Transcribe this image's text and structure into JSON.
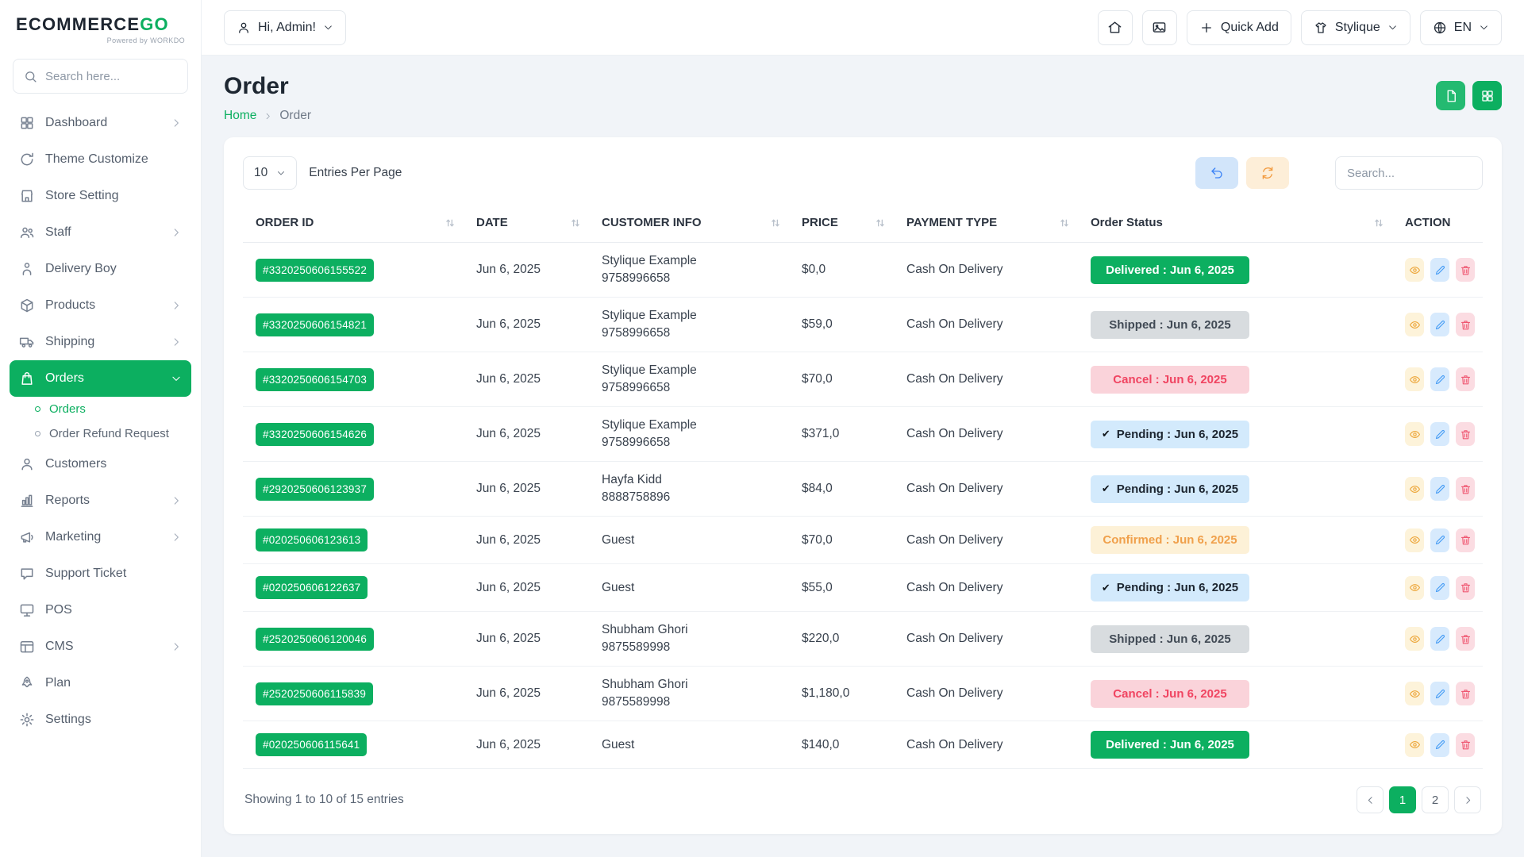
{
  "brand": {
    "name_main": "ECOMMERCE",
    "name_accent": "GO",
    "powered_by": "Powered by WORKDO"
  },
  "colors": {
    "primary": "#0CAF60",
    "danger": "#F04461",
    "info": "#3C83F6",
    "warning": "#F0A04B"
  },
  "sidebar": {
    "search_placeholder": "Search here...",
    "items": [
      {
        "label": "Dashboard",
        "icon": "dashboard",
        "chevron": "right"
      },
      {
        "label": "Theme Customize",
        "icon": "theme"
      },
      {
        "label": "Store Setting",
        "icon": "store-setting"
      },
      {
        "label": "Staff",
        "icon": "staff",
        "chevron": "right"
      },
      {
        "label": "Delivery Boy",
        "icon": "delivery-boy"
      },
      {
        "label": "Products",
        "icon": "products",
        "chevron": "right"
      },
      {
        "label": "Shipping",
        "icon": "shipping",
        "chevron": "right"
      },
      {
        "label": "Orders",
        "icon": "orders",
        "chevron": "down",
        "active": true,
        "children": [
          {
            "label": "Orders",
            "active": true
          },
          {
            "label": "Order Refund Request"
          }
        ]
      },
      {
        "label": "Customers",
        "icon": "customers"
      },
      {
        "label": "Reports",
        "icon": "reports",
        "chevron": "right"
      },
      {
        "label": "Marketing",
        "icon": "marketing",
        "chevron": "right"
      },
      {
        "label": "Support Ticket",
        "icon": "support"
      },
      {
        "label": "POS",
        "icon": "pos"
      },
      {
        "label": "CMS",
        "icon": "cms",
        "chevron": "right"
      },
      {
        "label": "Plan",
        "icon": "plan"
      },
      {
        "label": "Settings",
        "icon": "settings"
      }
    ]
  },
  "header": {
    "greeting": "Hi, Admin!",
    "quick_add_label": "Quick Add",
    "store_name": "Stylique",
    "language": "EN"
  },
  "page": {
    "title": "Order",
    "breadcrumb": {
      "home": "Home",
      "current": "Order"
    }
  },
  "table": {
    "per_page_value": "10",
    "per_page_label": "Entries Per Page",
    "search_placeholder": "Search...",
    "columns": [
      {
        "label": "ORDER ID",
        "sortable": true
      },
      {
        "label": "DATE",
        "sortable": true
      },
      {
        "label": "CUSTOMER INFO",
        "sortable": true
      },
      {
        "label": "PRICE",
        "sortable": true
      },
      {
        "label": "PAYMENT TYPE",
        "sortable": true
      },
      {
        "label": "Order Status",
        "sortable": true
      },
      {
        "label": "ACTION",
        "sortable": false
      }
    ],
    "rows": [
      {
        "id": "#3320250606155522",
        "date": "Jun 6, 2025",
        "customer": "Stylique Example",
        "phone": "9758996658",
        "price": "$0,0",
        "payment": "Cash On Delivery",
        "status": "Delivered : Jun 6, 2025",
        "status_type": "delivered",
        "check": false
      },
      {
        "id": "#3320250606154821",
        "date": "Jun 6, 2025",
        "customer": "Stylique Example",
        "phone": "9758996658",
        "price": "$59,0",
        "payment": "Cash On Delivery",
        "status": "Shipped : Jun 6, 2025",
        "status_type": "shipped",
        "check": false
      },
      {
        "id": "#3320250606154703",
        "date": "Jun 6, 2025",
        "customer": "Stylique Example",
        "phone": "9758996658",
        "price": "$70,0",
        "payment": "Cash On Delivery",
        "status": "Cancel : Jun 6, 2025",
        "status_type": "cancel",
        "check": false
      },
      {
        "id": "#3320250606154626",
        "date": "Jun 6, 2025",
        "customer": "Stylique Example",
        "phone": "9758996658",
        "price": "$371,0",
        "payment": "Cash On Delivery",
        "status": "Pending : Jun 6, 2025",
        "status_type": "pending",
        "check": true
      },
      {
        "id": "#2920250606123937",
        "date": "Jun 6, 2025",
        "customer": "Hayfa Kidd",
        "phone": "8888758896",
        "price": "$84,0",
        "payment": "Cash On Delivery",
        "status": "Pending : Jun 6, 2025",
        "status_type": "pending",
        "check": true
      },
      {
        "id": "#020250606123613",
        "date": "Jun 6, 2025",
        "customer": "Guest",
        "phone": "",
        "price": "$70,0",
        "payment": "Cash On Delivery",
        "status": "Confirmed : Jun 6, 2025",
        "status_type": "confirmed",
        "check": false
      },
      {
        "id": "#020250606122637",
        "date": "Jun 6, 2025",
        "customer": "Guest",
        "phone": "",
        "price": "$55,0",
        "payment": "Cash On Delivery",
        "status": "Pending : Jun 6, 2025",
        "status_type": "pending",
        "check": true
      },
      {
        "id": "#2520250606120046",
        "date": "Jun 6, 2025",
        "customer": "Shubham Ghori",
        "phone": "9875589998",
        "price": "$220,0",
        "payment": "Cash On Delivery",
        "status": "Shipped : Jun 6, 2025",
        "status_type": "shipped",
        "check": false
      },
      {
        "id": "#2520250606115839",
        "date": "Jun 6, 2025",
        "customer": "Shubham Ghori",
        "phone": "9875589998",
        "price": "$1,180,0",
        "payment": "Cash On Delivery",
        "status": "Cancel : Jun 6, 2025",
        "status_type": "cancel",
        "check": false
      },
      {
        "id": "#020250606115641",
        "date": "Jun 6, 2025",
        "customer": "Guest",
        "phone": "",
        "price": "$140,0",
        "payment": "Cash On Delivery",
        "status": "Delivered : Jun 6, 2025",
        "status_type": "delivered",
        "check": false
      }
    ],
    "footer_text": "Showing 1 to 10 of 15 entries",
    "pagination": {
      "pages": [
        "1",
        "2"
      ],
      "active": "1"
    }
  }
}
